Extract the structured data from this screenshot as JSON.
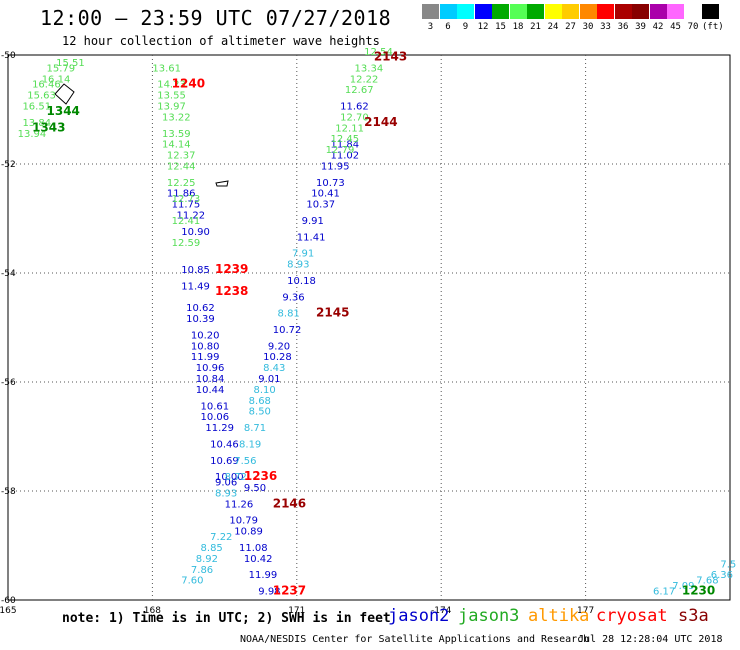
{
  "title": "12:00 – 23:59 UTC 07/27/2018",
  "subtitle": "12 hour collection of altimeter wave heights",
  "scale": {
    "colors": [
      "#888888",
      "#00ccff",
      "#00ffff",
      "#0000ff",
      "#00aa00",
      "#55ff55",
      "#00aa00",
      "#ffff00",
      "#ffcc00",
      "#ff8800",
      "#ff0000",
      "#aa0000",
      "#880000",
      "#aa00aa",
      "#ff66ff",
      "#ffffff",
      "#000000"
    ],
    "labels": [
      "3",
      "6",
      "9",
      "12",
      "15",
      "18",
      "21",
      "24",
      "27",
      "30",
      "33",
      "36",
      "39",
      "42",
      "45",
      "70",
      "(ft)"
    ]
  },
  "axes": {
    "lon_ticks": [
      "165",
      "168",
      "171",
      "-174",
      "177"
    ],
    "lat_ticks": [
      "-50",
      "-52",
      "-54",
      "-56",
      "-58",
      "-60"
    ]
  },
  "chart_data": {
    "type": "scatter",
    "xlabel": "",
    "ylabel": "",
    "xlim": [
      165,
      180
    ],
    "ylim": [
      -60,
      -50
    ],
    "series": [
      {
        "name": "jason2",
        "color": "#0000cc",
        "points": [
          {
            "lon": 168.3,
            "lat": -52.6,
            "v": "11.86"
          },
          {
            "lon": 168.4,
            "lat": -52.8,
            "v": "11.75"
          },
          {
            "lon": 168.5,
            "lat": -53.0,
            "v": "11.22"
          },
          {
            "lon": 168.6,
            "lat": -53.3,
            "v": "10.90"
          },
          {
            "lon": 168.6,
            "lat": -54.0,
            "v": "10.85"
          },
          {
            "lon": 168.6,
            "lat": -54.3,
            "v": "11.49"
          },
          {
            "lon": 168.7,
            "lat": -54.7,
            "v": "10.62"
          },
          {
            "lon": 168.7,
            "lat": -54.9,
            "v": "10.39"
          },
          {
            "lon": 168.8,
            "lat": -55.2,
            "v": "10.20"
          },
          {
            "lon": 168.8,
            "lat": -55.4,
            "v": "10.80"
          },
          {
            "lon": 168.8,
            "lat": -55.6,
            "v": "11.99"
          },
          {
            "lon": 168.9,
            "lat": -55.8,
            "v": "10.96"
          },
          {
            "lon": 168.9,
            "lat": -56.0,
            "v": "10.84"
          },
          {
            "lon": 168.9,
            "lat": -56.2,
            "v": "10.44"
          },
          {
            "lon": 169.0,
            "lat": -56.5,
            "v": "10.61"
          },
          {
            "lon": 169.0,
            "lat": -56.7,
            "v": "10.06"
          },
          {
            "lon": 169.1,
            "lat": -56.9,
            "v": "11.29"
          },
          {
            "lon": 169.2,
            "lat": -57.2,
            "v": "10.46"
          },
          {
            "lon": 169.2,
            "lat": -57.5,
            "v": "10.69"
          },
          {
            "lon": 169.3,
            "lat": -57.8,
            "v": "10.00"
          },
          {
            "lon": 169.3,
            "lat": -57.9,
            "v": "9.06"
          },
          {
            "lon": 169.5,
            "lat": -58.3,
            "v": "11.26"
          },
          {
            "lon": 169.6,
            "lat": -58.6,
            "v": "10.79"
          },
          {
            "lon": 169.7,
            "lat": -58.8,
            "v": "10.89"
          },
          {
            "lon": 169.8,
            "lat": -59.1,
            "v": "11.08"
          },
          {
            "lon": 169.9,
            "lat": -59.3,
            "v": "10.42"
          },
          {
            "lon": 170.0,
            "lat": -59.6,
            "v": "11.99"
          },
          {
            "lon": 171.9,
            "lat": -51.0,
            "v": "11.62"
          },
          {
            "lon": 171.7,
            "lat": -51.7,
            "v": "11.84"
          },
          {
            "lon": 171.7,
            "lat": -51.9,
            "v": "11.02"
          },
          {
            "lon": 171.5,
            "lat": -52.1,
            "v": "11.95"
          },
          {
            "lon": 171.4,
            "lat": -52.4,
            "v": "10.73"
          },
          {
            "lon": 171.3,
            "lat": -52.6,
            "v": "10.41"
          },
          {
            "lon": 171.2,
            "lat": -52.8,
            "v": "10.37"
          },
          {
            "lon": 171.1,
            "lat": -53.1,
            "v": "9.91"
          },
          {
            "lon": 171.0,
            "lat": -53.4,
            "v": "11.41"
          },
          {
            "lon": 170.8,
            "lat": -54.2,
            "v": "10.18"
          },
          {
            "lon": 170.7,
            "lat": -54.5,
            "v": "9.36"
          },
          {
            "lon": 170.5,
            "lat": -55.1,
            "v": "10.72"
          },
          {
            "lon": 170.4,
            "lat": -55.4,
            "v": "9.20"
          },
          {
            "lon": 170.3,
            "lat": -55.6,
            "v": "10.28"
          },
          {
            "lon": 170.2,
            "lat": -56.0,
            "v": "9.01"
          },
          {
            "lon": 169.9,
            "lat": -58.0,
            "v": "9.50"
          },
          {
            "lon": 170.2,
            "lat": -59.9,
            "v": "9.98"
          }
        ]
      },
      {
        "name": "jason3",
        "color": "#55dd55",
        "points": [
          {
            "lon": 168.0,
            "lat": -50.3,
            "v": "13.61"
          },
          {
            "lon": 168.1,
            "lat": -50.6,
            "v": "14.23"
          },
          {
            "lon": 168.1,
            "lat": -50.8,
            "v": "13.55"
          },
          {
            "lon": 168.1,
            "lat": -51.0,
            "v": "13.97"
          },
          {
            "lon": 168.2,
            "lat": -51.2,
            "v": "13.22"
          },
          {
            "lon": 168.2,
            "lat": -51.5,
            "v": "13.59"
          },
          {
            "lon": 168.2,
            "lat": -51.7,
            "v": "14.14"
          },
          {
            "lon": 168.3,
            "lat": -51.9,
            "v": "12.37"
          },
          {
            "lon": 168.3,
            "lat": -52.1,
            "v": "12.44"
          },
          {
            "lon": 168.3,
            "lat": -52.4,
            "v": "12.25"
          },
          {
            "lon": 168.4,
            "lat": -52.7,
            "v": "12.73"
          },
          {
            "lon": 168.4,
            "lat": -53.1,
            "v": "12.41"
          },
          {
            "lon": 168.4,
            "lat": -53.5,
            "v": "12.59"
          },
          {
            "lon": 172.4,
            "lat": -50.0,
            "v": "12.54"
          },
          {
            "lon": 172.2,
            "lat": -50.3,
            "v": "13.34"
          },
          {
            "lon": 172.1,
            "lat": -50.5,
            "v": "12.22"
          },
          {
            "lon": 172.0,
            "lat": -50.7,
            "v": "12.67"
          },
          {
            "lon": 171.9,
            "lat": -51.2,
            "v": "12.70"
          },
          {
            "lon": 171.8,
            "lat": -51.4,
            "v": "12.11"
          },
          {
            "lon": 171.7,
            "lat": -51.6,
            "v": "12.45"
          },
          {
            "lon": 171.6,
            "lat": -51.8,
            "v": "12.79"
          },
          {
            "lon": 166.0,
            "lat": -50.2,
            "v": "15.51"
          },
          {
            "lon": 165.8,
            "lat": -50.3,
            "v": "15.79"
          },
          {
            "lon": 165.7,
            "lat": -50.5,
            "v": "16.14"
          },
          {
            "lon": 165.5,
            "lat": -50.6,
            "v": "16.46"
          },
          {
            "lon": 165.4,
            "lat": -50.8,
            "v": "15.63"
          },
          {
            "lon": 165.3,
            "lat": -51.0,
            "v": "16.51"
          },
          {
            "lon": 165.3,
            "lat": -51.3,
            "v": "13.84"
          },
          {
            "lon": 165.2,
            "lat": -51.5,
            "v": "13.94"
          }
        ]
      },
      {
        "name": "altika",
        "color": "#33bbdd",
        "points": [
          {
            "lon": 170.9,
            "lat": -53.7,
            "v": "7.91"
          },
          {
            "lon": 170.8,
            "lat": -53.9,
            "v": "8.93"
          },
          {
            "lon": 170.6,
            "lat": -54.8,
            "v": "8.81"
          },
          {
            "lon": 170.3,
            "lat": -55.8,
            "v": "8.43"
          },
          {
            "lon": 170.1,
            "lat": -56.2,
            "v": "8.10"
          },
          {
            "lon": 170.0,
            "lat": -56.4,
            "v": "8.68"
          },
          {
            "lon": 170.0,
            "lat": -56.6,
            "v": "8.50"
          },
          {
            "lon": 169.9,
            "lat": -56.9,
            "v": "8.71"
          },
          {
            "lon": 169.8,
            "lat": -57.2,
            "v": "8.19"
          },
          {
            "lon": 169.7,
            "lat": -57.5,
            "v": "7.56"
          },
          {
            "lon": 169.5,
            "lat": -57.8,
            "v": "8.72"
          },
          {
            "lon": 169.3,
            "lat": -58.1,
            "v": "8.93"
          },
          {
            "lon": 169.2,
            "lat": -58.9,
            "v": "7.22"
          },
          {
            "lon": 169.0,
            "lat": -59.1,
            "v": "8.85"
          },
          {
            "lon": 168.9,
            "lat": -59.3,
            "v": "8.92"
          },
          {
            "lon": 168.8,
            "lat": -59.5,
            "v": "7.86"
          },
          {
            "lon": 168.6,
            "lat": -59.7,
            "v": "7.60"
          },
          {
            "lon": 179.8,
            "lat": -59.4,
            "v": "7.5"
          },
          {
            "lon": 179.6,
            "lat": -59.6,
            "v": "6.36"
          },
          {
            "lon": 179.3,
            "lat": -59.7,
            "v": "7.68"
          },
          {
            "lon": 178.8,
            "lat": -59.8,
            "v": "7.09"
          },
          {
            "lon": 178.4,
            "lat": -59.9,
            "v": "6.17"
          }
        ]
      }
    ],
    "time_labels": [
      {
        "lon": 172.6,
        "lat": -50.1,
        "t": "2143",
        "color": "#990000"
      },
      {
        "lon": 172.4,
        "lat": -51.3,
        "t": "2144",
        "color": "#990000"
      },
      {
        "lon": 171.4,
        "lat": -54.8,
        "t": "2145",
        "color": "#990000"
      },
      {
        "lon": 170.5,
        "lat": -58.3,
        "t": "2146",
        "color": "#990000"
      },
      {
        "lon": 168.4,
        "lat": -50.6,
        "t": "1240",
        "color": "#ff0000"
      },
      {
        "lon": 169.3,
        "lat": -54.0,
        "t": "1239",
        "color": "#ff0000"
      },
      {
        "lon": 169.3,
        "lat": -54.4,
        "t": "1238",
        "color": "#ff0000"
      },
      {
        "lon": 169.9,
        "lat": -57.8,
        "t": "1236",
        "color": "#ff0000"
      },
      {
        "lon": 170.5,
        "lat": -59.9,
        "t": "1237",
        "color": "#ff0000"
      },
      {
        "lon": 165.8,
        "lat": -51.1,
        "t": "1344",
        "color": "#008800"
      },
      {
        "lon": 165.5,
        "lat": -51.4,
        "t": "1343",
        "color": "#008800"
      },
      {
        "lon": 179.0,
        "lat": -59.9,
        "t": "1230",
        "color": "#008800"
      }
    ]
  },
  "note": "note: 1) Time is in UTC; 2) SWH is in feet",
  "legend": [
    {
      "name": "jason2",
      "color": "#0000cc"
    },
    {
      "name": "jason3",
      "color": "#22aa22"
    },
    {
      "name": "altika",
      "color": "#ff9900"
    },
    {
      "name": "cryosat",
      "color": "#ff0000"
    },
    {
      "name": "s3a",
      "color": "#880000"
    }
  ],
  "credit": "NOAA/NESDIS Center for Satellite Applications and Research",
  "stamp": "Jul 28 12:28:04 UTC 2018"
}
